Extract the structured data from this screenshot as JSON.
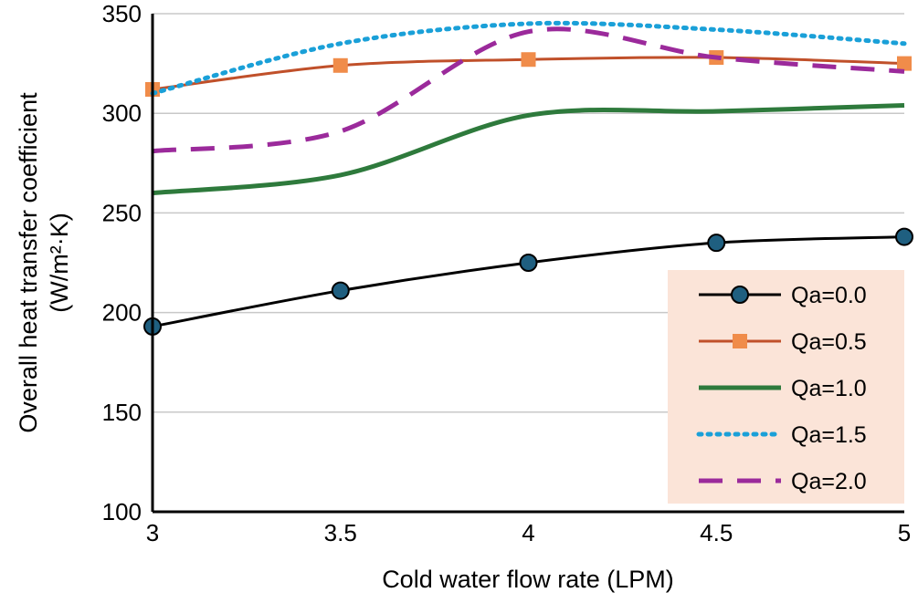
{
  "chart_data": {
    "type": "line",
    "title": "",
    "xlabel": "Cold water flow rate (LPM)",
    "ylabel_line1": "Overall heat transfer coefficient",
    "ylabel_line2": "(W/m²·K)",
    "x": [
      3,
      3.5,
      4,
      4.5,
      5
    ],
    "x_tick_labels": [
      "3",
      "3.5",
      "4",
      "4.5",
      "5"
    ],
    "xlim": [
      3,
      5
    ],
    "ylim": [
      100,
      350
    ],
    "y_ticks": [
      100,
      150,
      200,
      250,
      300,
      350
    ],
    "y_tick_labels": [
      "100",
      "150",
      "200",
      "250",
      "300",
      "350"
    ],
    "grid": "horizontal",
    "legend_position": "bottom-right",
    "series": [
      {
        "name": "Qa=0.0",
        "values": [
          193,
          211,
          225,
          235,
          238
        ],
        "color": "#000000",
        "style": "solid",
        "marker": "circle",
        "marker_color": "#1f5f80"
      },
      {
        "name": "Qa=0.5",
        "values": [
          312,
          324,
          327,
          328,
          325
        ],
        "color": "#c0502a",
        "style": "solid",
        "marker": "square",
        "marker_color": "#f08c4a"
      },
      {
        "name": "Qa=1.0",
        "values": [
          260,
          269,
          299,
          301,
          304
        ],
        "color": "#2e7a3c",
        "style": "solid",
        "marker": "none"
      },
      {
        "name": "Qa=1.5",
        "values": [
          310,
          335,
          345,
          342,
          335
        ],
        "color": "#1aa0d8",
        "style": "dotted",
        "marker": "none"
      },
      {
        "name": "Qa=2.0",
        "values": [
          281,
          291,
          341,
          328,
          321
        ],
        "color": "#9b2a9b",
        "style": "dashed",
        "marker": "none"
      }
    ],
    "legend_bg": "#fbe4d8"
  }
}
